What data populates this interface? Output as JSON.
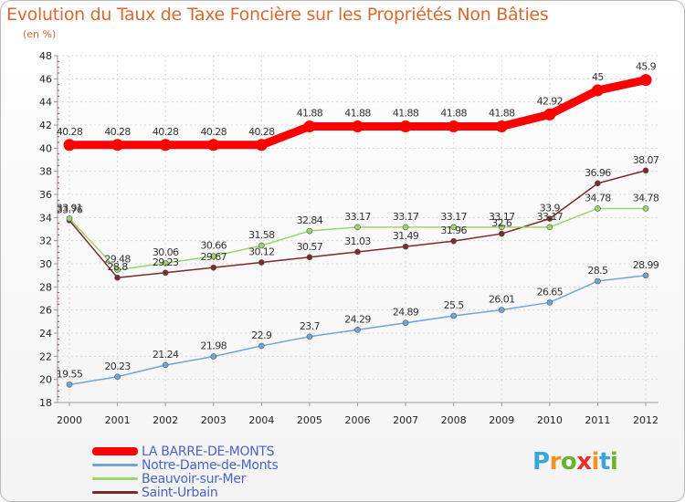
{
  "title": "Evolution du Taux de Taxe Foncière sur les Propriétés Non Bâties",
  "subtitle": "(en %)",
  "logo": {
    "text": "Proxiti",
    "letters": [
      "P",
      "r",
      "o",
      "x",
      "i",
      "t",
      "i"
    ],
    "colors": [
      "#3aa7d8",
      "#f29320",
      "#69b42e",
      "#e6302a",
      "#f29320",
      "#3aa7d8",
      "#69b42e"
    ]
  },
  "chart_data": {
    "type": "line",
    "title": "Evolution du Taux de Taxe Foncière sur les Propriétés Non Bâties",
    "ylabel": "(en %)",
    "xlabel": "",
    "ylim": [
      18,
      48
    ],
    "yticks": [
      18,
      20,
      22,
      24,
      26,
      28,
      30,
      32,
      34,
      36,
      38,
      40,
      42,
      44,
      46,
      48
    ],
    "categories": [
      "2000",
      "2001",
      "2002",
      "2003",
      "2004",
      "2005",
      "2006",
      "2007",
      "2008",
      "2009",
      "2010",
      "2011",
      "2012"
    ],
    "grid": true,
    "series": [
      {
        "name": "LA BARRE-DE-MONTS",
        "color": "#ff0000",
        "values": [
          40.28,
          40.28,
          40.28,
          40.28,
          40.28,
          41.88,
          41.88,
          41.88,
          41.88,
          41.88,
          42.92,
          45,
          45.9
        ],
        "labels": [
          "40.28",
          "40.28",
          "40.28",
          "40.28",
          "40.28",
          "41.88",
          "41.88",
          "41.88",
          "41.88",
          "41.88",
          "42.92",
          "45",
          "45.9"
        ]
      },
      {
        "name": "Notre-Dame-de-Monts",
        "color": "#6fa5d9",
        "values": [
          19.55,
          20.23,
          21.24,
          21.98,
          22.9,
          23.7,
          24.29,
          24.89,
          25.5,
          26.01,
          26.65,
          28.5,
          28.99
        ],
        "labels": [
          "19.55",
          "20.23",
          "21.24",
          "21.98",
          "22.9",
          "23.7",
          "24.29",
          "24.89",
          "25.5",
          "26.01",
          "26.65",
          "28.5",
          "28.99"
        ]
      },
      {
        "name": "Beauvoir-sur-Mer",
        "color": "#9ad66a",
        "values": [
          33.91,
          29.48,
          30.06,
          30.66,
          31.58,
          32.84,
          33.17,
          33.17,
          33.17,
          33.17,
          33.17,
          34.78,
          34.78
        ],
        "labels": [
          "33.91",
          "29.48",
          "30.06",
          "30.66",
          "31.58",
          "32.84",
          "33.17",
          "33.17",
          "33.17",
          "33.17",
          "33.17",
          "34.78",
          "34.78"
        ]
      },
      {
        "name": "Saint-Urbain",
        "color": "#7b2a2a",
        "values": [
          33.76,
          28.8,
          29.23,
          29.67,
          30.12,
          30.57,
          31.03,
          31.49,
          31.96,
          32.6,
          33.9,
          36.96,
          38.07
        ],
        "labels": [
          "33.76",
          "28.8",
          "29.23",
          "29.67",
          "30.12",
          "30.57",
          "31.03",
          "31.49",
          "31.96",
          "32.6",
          "33.9",
          "36.96",
          "38.07"
        ]
      }
    ]
  }
}
